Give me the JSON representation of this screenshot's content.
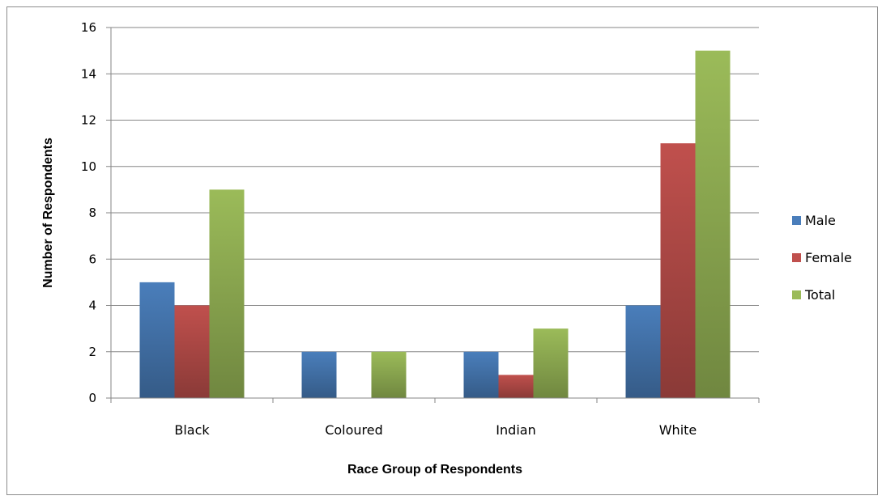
{
  "chart_data": {
    "type": "bar",
    "title": "",
    "xlabel": "Race Group of Respondents",
    "ylabel": "Number of Respondents",
    "categories": [
      "Black",
      "Coloured",
      "Indian",
      "White"
    ],
    "ylim": [
      0,
      16
    ],
    "yticks": [
      0,
      2,
      4,
      6,
      8,
      10,
      12,
      14,
      16
    ],
    "grid": true,
    "legend_position": "right",
    "series": [
      {
        "name": "Male",
        "color": "#4a7ebb",
        "values": [
          5,
          2,
          2,
          4
        ]
      },
      {
        "name": "Female",
        "color": "#c0504d",
        "values": [
          4,
          0,
          1,
          11
        ]
      },
      {
        "name": "Total",
        "color": "#9bbb59",
        "values": [
          9,
          2,
          3,
          15
        ]
      }
    ]
  }
}
